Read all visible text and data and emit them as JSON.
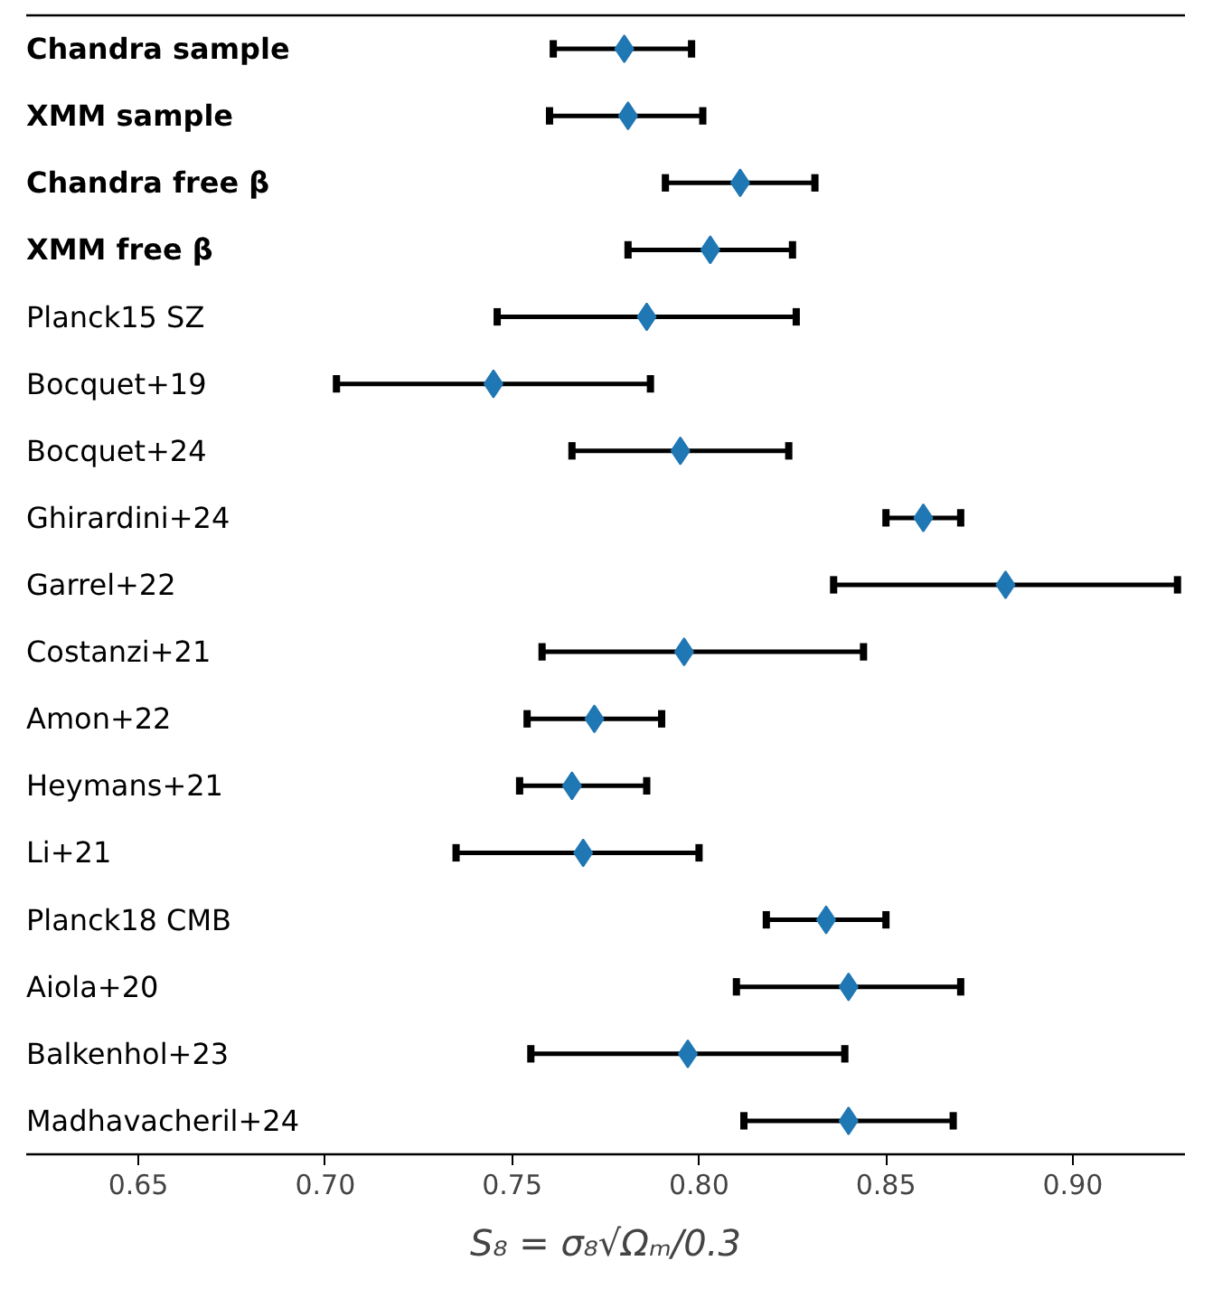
{
  "chart_data": {
    "type": "scatter",
    "orientation": "horizontal",
    "marker": "diamond",
    "xlabel": "S₈ = σ₈√Ωₘ/0.3",
    "categories": [
      "Chandra sample",
      "XMM sample",
      "Chandra free β",
      "XMM free β",
      "Planck15 SZ",
      "Bocquet+19",
      "Bocquet+24",
      "Ghirardini+24",
      "Garrel+22",
      "Costanzi+21",
      "Amon+22",
      "Heymans+21",
      "Li+21",
      "Planck18 CMB",
      "Aiola+20",
      "Balkenhol+23",
      "Madhavacheril+24"
    ],
    "color": "#1f77b4",
    "values": [
      0.78,
      0.781,
      0.811,
      0.803,
      0.786,
      0.745,
      0.795,
      0.86,
      0.882,
      0.796,
      0.772,
      0.766,
      0.769,
      0.834,
      0.84,
      0.797,
      0.84
    ],
    "errors": [
      [
        0.761,
        0.798
      ],
      [
        0.76,
        0.801
      ],
      [
        0.791,
        0.831
      ],
      [
        0.781,
        0.825
      ],
      [
        0.746,
        0.826
      ],
      [
        0.703,
        0.787
      ],
      [
        0.766,
        0.824
      ],
      [
        0.85,
        0.87
      ],
      [
        0.836,
        0.928
      ],
      [
        0.758,
        0.844
      ],
      [
        0.754,
        0.79
      ],
      [
        0.752,
        0.786
      ],
      [
        0.735,
        0.8
      ],
      [
        0.818,
        0.85
      ],
      [
        0.81,
        0.87
      ],
      [
        0.755,
        0.839
      ],
      [
        0.812,
        0.868
      ]
    ],
    "xlim": [
      0.62,
      0.93
    ],
    "xticks": [
      {
        "value": 0.65,
        "label": "0.65"
      },
      {
        "value": 0.7,
        "label": "0.70"
      },
      {
        "value": 0.75,
        "label": "0.75"
      },
      {
        "value": 0.8,
        "label": "0.80"
      },
      {
        "value": 0.85,
        "label": "0.85"
      },
      {
        "value": 0.9,
        "label": "0.90"
      }
    ]
  }
}
